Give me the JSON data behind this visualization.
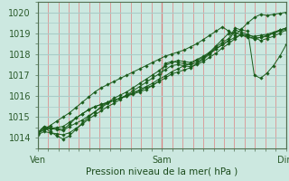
{
  "bg_color": "#cce8e0",
  "grid_color_minor_x": "#e08080",
  "grid_color_minor_y": "#a8ccc8",
  "line_color": "#1a5c1a",
  "marker_color": "#1a5c1a",
  "ylim": [
    1013.5,
    1020.5
  ],
  "yticks": [
    1014,
    1015,
    1016,
    1017,
    1018,
    1019,
    1020
  ],
  "xtick_labels": [
    "Ven",
    "Sam",
    "Dim"
  ],
  "xtick_positions": [
    0,
    48,
    96
  ],
  "x_total": 96,
  "xlabel": "Pression niveau de la mer( hPa )",
  "vline_color": "#507050",
  "series": [
    [
      1014.2,
      1014.4,
      1014.6,
      1014.8,
      1015.0,
      1015.2,
      1015.45,
      1015.7,
      1015.95,
      1016.2,
      1016.4,
      1016.55,
      1016.7,
      1016.85,
      1017.0,
      1017.15,
      1017.3,
      1017.45,
      1017.6,
      1017.75,
      1017.9,
      1018.0,
      1018.1,
      1018.2,
      1018.35,
      1018.5,
      1018.7,
      1018.9,
      1019.1,
      1019.3,
      1019.1,
      1018.9,
      1019.2,
      1019.5,
      1019.75,
      1019.9,
      1019.85,
      1019.9,
      1019.95,
      1020.0
    ],
    [
      1014.2,
      1014.5,
      1014.3,
      1014.1,
      1013.95,
      1014.1,
      1014.4,
      1014.7,
      1015.0,
      1015.25,
      1015.5,
      1015.7,
      1015.9,
      1016.05,
      1016.2,
      1016.4,
      1016.6,
      1016.8,
      1017.0,
      1017.2,
      1017.45,
      1017.6,
      1017.7,
      1017.65,
      1017.6,
      1017.75,
      1017.9,
      1018.1,
      1018.4,
      1018.7,
      1019.0,
      1019.05,
      1018.9,
      1018.8,
      1018.75,
      1018.8,
      1018.9,
      1019.0,
      1019.15,
      1019.25
    ],
    [
      1014.25,
      1014.5,
      1014.45,
      1014.4,
      1014.35,
      1014.55,
      1014.7,
      1014.85,
      1015.05,
      1015.25,
      1015.45,
      1015.65,
      1015.8,
      1015.9,
      1016.0,
      1016.1,
      1016.2,
      1016.3,
      1016.5,
      1016.7,
      1017.55,
      1017.65,
      1017.6,
      1017.55,
      1017.5,
      1017.6,
      1017.8,
      1018.05,
      1018.35,
      1018.55,
      1018.75,
      1019.25,
      1019.15,
      1019.1,
      1017.0,
      1016.85,
      1017.1,
      1017.45,
      1017.9,
      1018.45
    ],
    [
      1014.25,
      1014.55,
      1014.5,
      1014.45,
      1014.4,
      1014.65,
      1014.95,
      1015.15,
      1015.35,
      1015.5,
      1015.6,
      1015.7,
      1015.8,
      1015.9,
      1016.05,
      1016.15,
      1016.25,
      1016.4,
      1016.5,
      1016.7,
      1016.85,
      1017.05,
      1017.15,
      1017.25,
      1017.35,
      1017.55,
      1017.75,
      1018.0,
      1018.25,
      1018.45,
      1018.65,
      1019.15,
      1019.05,
      1018.95,
      1018.8,
      1018.65,
      1018.75,
      1018.85,
      1019.0,
      1019.15
    ],
    [
      1014.15,
      1014.3,
      1014.25,
      1014.2,
      1014.15,
      1014.25,
      1014.45,
      1014.65,
      1014.9,
      1015.1,
      1015.3,
      1015.5,
      1015.65,
      1015.85,
      1016.05,
      1016.25,
      1016.45,
      1016.65,
      1016.85,
      1017.05,
      1017.25,
      1017.45,
      1017.5,
      1017.45,
      1017.4,
      1017.5,
      1017.65,
      1017.85,
      1018.05,
      1018.3,
      1018.5,
      1018.75,
      1018.95,
      1018.85,
      1018.75,
      1018.8,
      1018.85,
      1019.0,
      1019.1,
      1019.2
    ],
    [
      1014.2,
      1014.4,
      1014.45,
      1014.5,
      1014.55,
      1014.75,
      1014.95,
      1015.15,
      1015.35,
      1015.5,
      1015.6,
      1015.7,
      1015.8,
      1015.9,
      1016.0,
      1016.15,
      1016.3,
      1016.45,
      1016.6,
      1016.8,
      1016.95,
      1017.15,
      1017.3,
      1017.45,
      1017.55,
      1017.7,
      1017.85,
      1018.05,
      1018.25,
      1018.45,
      1018.65,
      1018.8,
      1018.95,
      1018.9,
      1018.85,
      1018.9,
      1018.95,
      1019.05,
      1019.15,
      1019.25
    ]
  ]
}
